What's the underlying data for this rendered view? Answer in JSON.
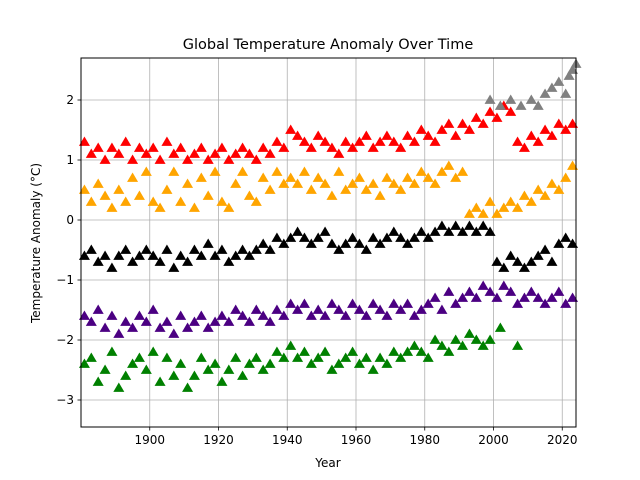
{
  "chart_data": {
    "type": "scatter",
    "title": "Global Temperature Anomaly Over Time",
    "xlabel": "Year",
    "ylabel": "Temperature Anomaly (°C)",
    "xlim": [
      1880,
      2024
    ],
    "ylim": [
      -3.45,
      2.7
    ],
    "x_ticks": [
      1900,
      1920,
      1940,
      1960,
      1980,
      2000,
      2020
    ],
    "y_ticks": [
      -3,
      -2,
      -1,
      0,
      1,
      2
    ],
    "grid": true,
    "marker": "triangle-up",
    "series": [
      {
        "color": "#008000",
        "x": [
          1881,
          1883,
          1885,
          1887,
          1889,
          1891,
          1893,
          1895,
          1897,
          1899,
          1901,
          1903,
          1905,
          1907,
          1909,
          1911,
          1913,
          1915,
          1917,
          1919,
          1921,
          1923,
          1925,
          1927,
          1929,
          1931,
          1933,
          1935,
          1937,
          1939,
          1941,
          1943,
          1945,
          1947,
          1949,
          1951,
          1953,
          1955,
          1957,
          1959,
          1961,
          1963,
          1965,
          1967,
          1969,
          1971,
          1973,
          1975,
          1977,
          1979,
          1981,
          1983,
          1985,
          1987,
          1989,
          1991,
          1993,
          1995,
          1997,
          1999,
          2002,
          2007
        ],
        "y": [
          -2.4,
          -2.3,
          -2.7,
          -2.5,
          -2.2,
          -2.8,
          -2.6,
          -2.4,
          -2.3,
          -2.5,
          -2.2,
          -2.7,
          -2.3,
          -2.6,
          -2.4,
          -2.8,
          -2.6,
          -2.3,
          -2.5,
          -2.4,
          -2.7,
          -2.5,
          -2.3,
          -2.6,
          -2.4,
          -2.3,
          -2.5,
          -2.4,
          -2.2,
          -2.3,
          -2.1,
          -2.3,
          -2.2,
          -2.4,
          -2.3,
          -2.2,
          -2.5,
          -2.4,
          -2.3,
          -2.2,
          -2.4,
          -2.3,
          -2.5,
          -2.3,
          -2.4,
          -2.2,
          -2.3,
          -2.2,
          -2.1,
          -2.2,
          -2.3,
          -2.0,
          -2.1,
          -2.2,
          -2.0,
          -2.1,
          -1.9,
          -2.0,
          -2.1,
          -2.0,
          -1.8,
          -2.1
        ]
      },
      {
        "color": "#4b0082",
        "x": [
          1881,
          1883,
          1885,
          1887,
          1889,
          1891,
          1893,
          1895,
          1897,
          1899,
          1901,
          1903,
          1905,
          1907,
          1909,
          1911,
          1913,
          1915,
          1917,
          1919,
          1921,
          1923,
          1925,
          1927,
          1929,
          1931,
          1933,
          1935,
          1937,
          1939,
          1941,
          1943,
          1945,
          1947,
          1949,
          1951,
          1953,
          1955,
          1957,
          1959,
          1961,
          1963,
          1965,
          1967,
          1969,
          1971,
          1973,
          1975,
          1977,
          1979,
          1981,
          1983,
          1985,
          1987,
          1989,
          1991,
          1993,
          1995,
          1997,
          1999,
          2001,
          2003,
          2005,
          2007,
          2009,
          2011,
          2013,
          2015,
          2017,
          2019,
          2021,
          2023
        ],
        "y": [
          -1.6,
          -1.7,
          -1.5,
          -1.8,
          -1.6,
          -1.9,
          -1.7,
          -1.8,
          -1.6,
          -1.7,
          -1.5,
          -1.8,
          -1.7,
          -1.9,
          -1.6,
          -1.8,
          -1.7,
          -1.6,
          -1.8,
          -1.7,
          -1.6,
          -1.7,
          -1.5,
          -1.6,
          -1.7,
          -1.5,
          -1.6,
          -1.7,
          -1.5,
          -1.6,
          -1.4,
          -1.5,
          -1.4,
          -1.6,
          -1.5,
          -1.6,
          -1.4,
          -1.5,
          -1.6,
          -1.4,
          -1.5,
          -1.6,
          -1.4,
          -1.5,
          -1.6,
          -1.4,
          -1.5,
          -1.4,
          -1.6,
          -1.5,
          -1.4,
          -1.3,
          -1.5,
          -1.2,
          -1.4,
          -1.3,
          -1.2,
          -1.3,
          -1.1,
          -1.2,
          -1.3,
          -1.1,
          -1.2,
          -1.4,
          -1.3,
          -1.2,
          -1.3,
          -1.4,
          -1.3,
          -1.2,
          -1.4,
          -1.3
        ]
      },
      {
        "color": "#000000",
        "x": [
          1881,
          1883,
          1885,
          1887,
          1889,
          1891,
          1893,
          1895,
          1897,
          1899,
          1901,
          1903,
          1905,
          1907,
          1909,
          1911,
          1913,
          1915,
          1917,
          1919,
          1921,
          1923,
          1925,
          1927,
          1929,
          1931,
          1933,
          1935,
          1937,
          1939,
          1941,
          1943,
          1945,
          1947,
          1949,
          1951,
          1953,
          1955,
          1957,
          1959,
          1961,
          1963,
          1965,
          1967,
          1969,
          1971,
          1973,
          1975,
          1977,
          1979,
          1981,
          1983,
          1985,
          1987,
          1989,
          1991,
          1993,
          1995,
          1997,
          1999,
          2001,
          2003,
          2005,
          2007,
          2009,
          2011,
          2013,
          2015,
          2017,
          2019,
          2021,
          2023
        ],
        "y": [
          -0.6,
          -0.5,
          -0.7,
          -0.6,
          -0.8,
          -0.6,
          -0.5,
          -0.7,
          -0.6,
          -0.5,
          -0.6,
          -0.7,
          -0.5,
          -0.8,
          -0.6,
          -0.7,
          -0.5,
          -0.6,
          -0.4,
          -0.6,
          -0.5,
          -0.7,
          -0.6,
          -0.5,
          -0.6,
          -0.5,
          -0.4,
          -0.5,
          -0.3,
          -0.4,
          -0.3,
          -0.2,
          -0.3,
          -0.4,
          -0.3,
          -0.2,
          -0.4,
          -0.5,
          -0.4,
          -0.3,
          -0.4,
          -0.5,
          -0.3,
          -0.4,
          -0.3,
          -0.2,
          -0.3,
          -0.4,
          -0.3,
          -0.2,
          -0.3,
          -0.2,
          -0.1,
          -0.2,
          -0.1,
          -0.2,
          -0.1,
          -0.2,
          -0.1,
          -0.2,
          -0.7,
          -0.8,
          -0.6,
          -0.7,
          -0.8,
          -0.7,
          -0.6,
          -0.5,
          -0.7,
          -0.4,
          -0.3,
          -0.4
        ]
      },
      {
        "color": "#ffa500",
        "x": [
          1881,
          1883,
          1885,
          1887,
          1889,
          1891,
          1893,
          1895,
          1897,
          1899,
          1901,
          1903,
          1905,
          1907,
          1909,
          1911,
          1913,
          1915,
          1917,
          1919,
          1921,
          1923,
          1925,
          1927,
          1929,
          1931,
          1933,
          1935,
          1937,
          1939,
          1941,
          1943,
          1945,
          1947,
          1949,
          1951,
          1953,
          1955,
          1957,
          1959,
          1961,
          1963,
          1965,
          1967,
          1969,
          1971,
          1973,
          1975,
          1977,
          1979,
          1981,
          1983,
          1985,
          1987,
          1989,
          1991,
          1993,
          1995,
          1997,
          1999,
          2001,
          2003,
          2005,
          2007,
          2009,
          2011,
          2013,
          2015,
          2017,
          2019,
          2021,
          2023
        ],
        "y": [
          0.5,
          0.3,
          0.6,
          0.4,
          0.2,
          0.5,
          0.3,
          0.7,
          0.4,
          0.8,
          0.3,
          0.2,
          0.5,
          0.8,
          0.3,
          0.6,
          0.2,
          0.7,
          0.4,
          0.8,
          0.3,
          0.2,
          0.6,
          0.8,
          0.4,
          0.3,
          0.7,
          0.5,
          0.8,
          0.6,
          0.7,
          0.6,
          0.8,
          0.5,
          0.7,
          0.6,
          0.4,
          0.8,
          0.5,
          0.6,
          0.7,
          0.5,
          0.6,
          0.4,
          0.7,
          0.6,
          0.5,
          0.7,
          0.6,
          0.8,
          0.7,
          0.6,
          0.8,
          0.9,
          0.7,
          0.8,
          0.1,
          0.2,
          0.1,
          0.3,
          0.1,
          0.2,
          0.3,
          0.2,
          0.4,
          0.3,
          0.5,
          0.4,
          0.6,
          0.5,
          0.7,
          0.9
        ]
      },
      {
        "color": "#ff0000",
        "x": [
          1881,
          1883,
          1885,
          1887,
          1889,
          1891,
          1893,
          1895,
          1897,
          1899,
          1901,
          1903,
          1905,
          1907,
          1909,
          1911,
          1913,
          1915,
          1917,
          1919,
          1921,
          1923,
          1925,
          1927,
          1929,
          1931,
          1933,
          1935,
          1937,
          1939,
          1941,
          1943,
          1945,
          1947,
          1949,
          1951,
          1953,
          1955,
          1957,
          1959,
          1961,
          1963,
          1965,
          1967,
          1969,
          1971,
          1973,
          1975,
          1977,
          1979,
          1981,
          1983,
          1985,
          1987,
          1989,
          1991,
          1993,
          1995,
          1997,
          1999,
          2001,
          2003,
          2005,
          2007,
          2009,
          2011,
          2013,
          2015,
          2017,
          2019,
          2021,
          2023
        ],
        "y": [
          1.3,
          1.1,
          1.2,
          1.0,
          1.2,
          1.1,
          1.3,
          1.0,
          1.2,
          1.1,
          1.2,
          1.0,
          1.3,
          1.1,
          1.2,
          1.0,
          1.1,
          1.2,
          1.0,
          1.1,
          1.2,
          1.0,
          1.1,
          1.2,
          1.1,
          1.0,
          1.2,
          1.1,
          1.3,
          1.2,
          1.5,
          1.4,
          1.3,
          1.2,
          1.4,
          1.3,
          1.2,
          1.1,
          1.3,
          1.2,
          1.3,
          1.4,
          1.2,
          1.3,
          1.4,
          1.3,
          1.2,
          1.4,
          1.3,
          1.5,
          1.4,
          1.3,
          1.5,
          1.6,
          1.4,
          1.6,
          1.5,
          1.7,
          1.6,
          1.8,
          1.7,
          1.9,
          1.8,
          1.3,
          1.2,
          1.4,
          1.3,
          1.5,
          1.4,
          1.6,
          1.5,
          1.6
        ]
      },
      {
        "color": "#808080",
        "x": [
          1999,
          2002,
          2005,
          2008,
          2011,
          2013,
          2015,
          2017,
          2019,
          2021,
          2022,
          2023,
          2024
        ],
        "y": [
          2.0,
          1.9,
          2.0,
          1.9,
          2.0,
          1.9,
          2.1,
          2.2,
          2.3,
          2.1,
          2.4,
          2.5,
          2.6
        ]
      }
    ]
  }
}
